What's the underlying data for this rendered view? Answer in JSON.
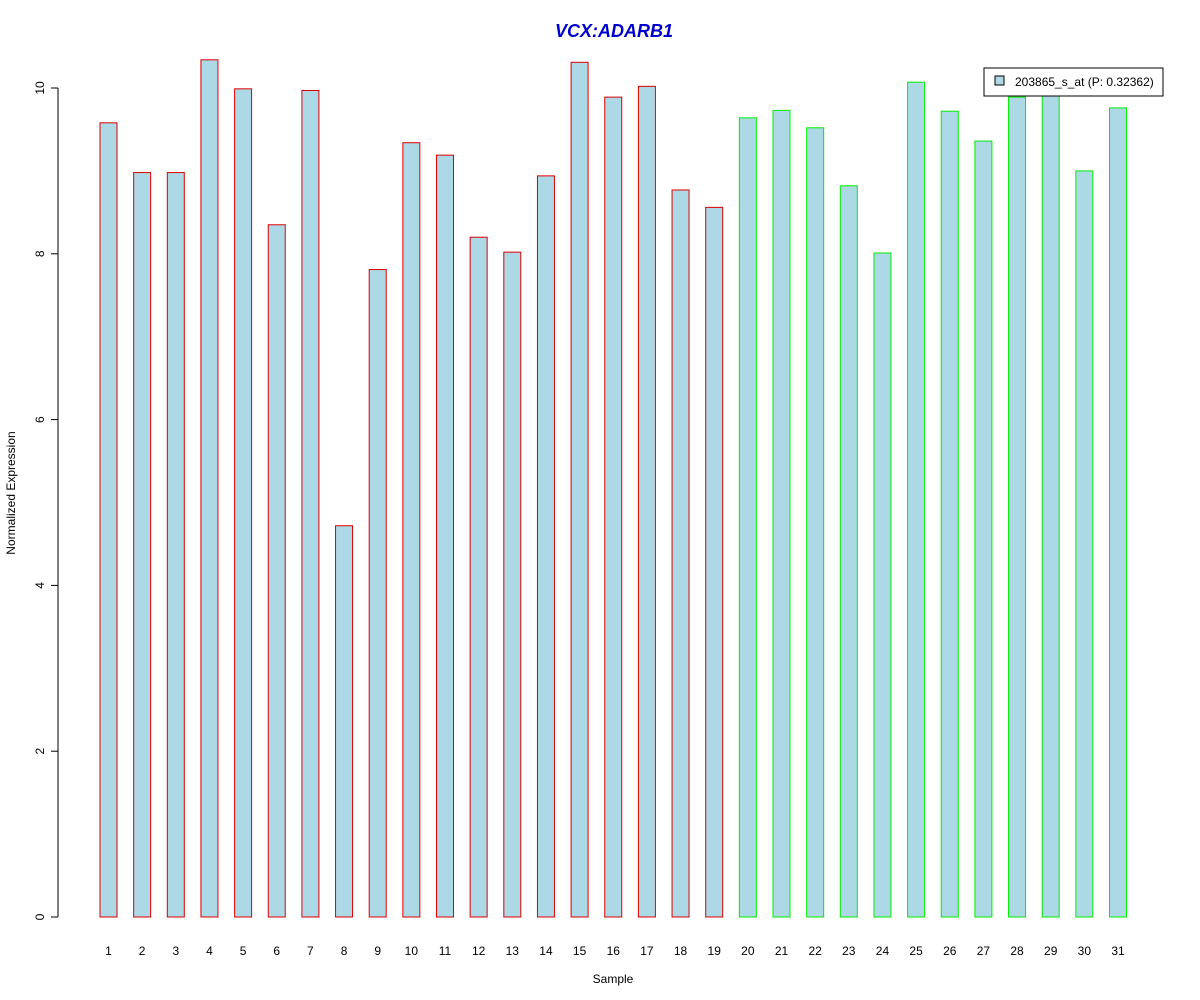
{
  "chart_data": {
    "type": "bar",
    "title": "VCX:ADARB1",
    "xlabel": "Sample",
    "ylabel": "Normalized Expression",
    "categories": [
      "1",
      "2",
      "3",
      "4",
      "5",
      "6",
      "7",
      "8",
      "9",
      "10",
      "11",
      "12",
      "13",
      "14",
      "15",
      "16",
      "17",
      "18",
      "19",
      "20",
      "21",
      "22",
      "23",
      "24",
      "25",
      "26",
      "27",
      "28",
      "29",
      "30",
      "31"
    ],
    "series": [
      {
        "name": "203865_s_at (P: 0.32362)",
        "values": [
          9.58,
          8.98,
          8.98,
          10.34,
          9.99,
          8.35,
          9.97,
          4.72,
          7.81,
          9.34,
          9.19,
          8.2,
          8.02,
          8.94,
          10.31,
          9.89,
          10.02,
          8.77,
          8.56,
          9.64,
          9.73,
          9.52,
          8.82,
          8.01,
          10.07,
          9.72,
          9.36,
          9.89,
          9.93,
          9.0,
          9.76
        ]
      }
    ],
    "groups": [
      {
        "samples": [
          1,
          19
        ],
        "border_color": "#dd0000"
      },
      {
        "samples": [
          20,
          31
        ],
        "border_color": "#00ee00"
      }
    ],
    "fill_color": "#add8e6",
    "title_color": "#0000cc",
    "y_ticks": [
      0,
      2,
      4,
      6,
      8,
      10
    ],
    "ylim": [
      0,
      10.4
    ],
    "grid": false,
    "legend_position": "top-right"
  }
}
